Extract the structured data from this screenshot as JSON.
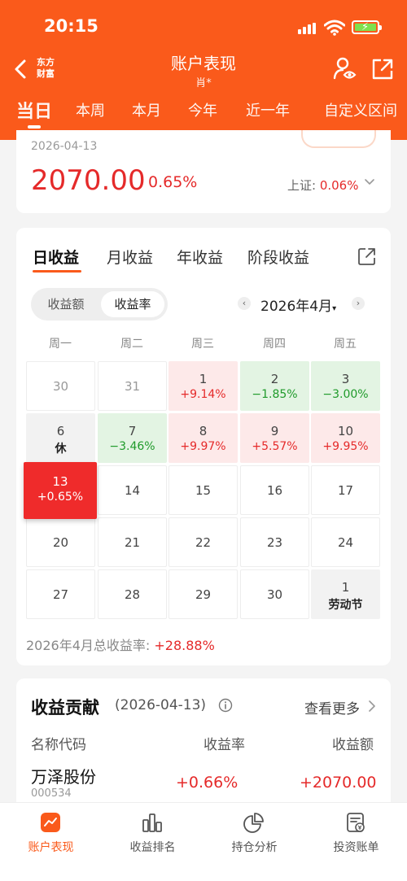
{
  "status_bar": {
    "time": "20:15"
  },
  "header": {
    "logo_line1": "东方",
    "logo_line2": "财富",
    "title": "账户表现",
    "subtitle": "肖*",
    "tabs": [
      "当日",
      "本周",
      "本月",
      "今年",
      "近一年",
      "自定义区间"
    ]
  },
  "summary": {
    "date": "2026-04-13",
    "amount": "2070.00",
    "pct": "0.65%",
    "index_label": "上证: ",
    "index_value": "0.06%"
  },
  "calendar_tabs": [
    "日收益",
    "月收益",
    "年收益",
    "阶段收益"
  ],
  "segment": [
    "收益额",
    "收益率"
  ],
  "month": {
    "prev": "‹",
    "label": "2026年4月",
    "caret": "▾",
    "next": "›"
  },
  "weekdays": [
    "周一",
    "周二",
    "周三",
    "周四",
    "周五"
  ],
  "calendar": [
    [
      {
        "d": "30",
        "p": "",
        "t": "other"
      },
      {
        "d": "31",
        "p": "",
        "t": "other"
      },
      {
        "d": "1",
        "p": "+9.14%",
        "t": "up"
      },
      {
        "d": "2",
        "p": "−1.85%",
        "t": "down"
      },
      {
        "d": "3",
        "p": "−3.00%",
        "t": "down"
      }
    ],
    [
      {
        "d": "6",
        "p": "休",
        "t": "rest"
      },
      {
        "d": "7",
        "p": "−3.46%",
        "t": "down"
      },
      {
        "d": "8",
        "p": "+9.97%",
        "t": "up"
      },
      {
        "d": "9",
        "p": "+5.57%",
        "t": "up"
      },
      {
        "d": "10",
        "p": "+9.95%",
        "t": "up"
      }
    ],
    [
      {
        "d": "13",
        "p": "+0.65%",
        "t": "today"
      },
      {
        "d": "14",
        "p": "",
        "t": "plain"
      },
      {
        "d": "15",
        "p": "",
        "t": "plain"
      },
      {
        "d": "16",
        "p": "",
        "t": "plain"
      },
      {
        "d": "17",
        "p": "",
        "t": "plain"
      }
    ],
    [
      {
        "d": "20",
        "p": "",
        "t": "plain"
      },
      {
        "d": "21",
        "p": "",
        "t": "plain"
      },
      {
        "d": "22",
        "p": "",
        "t": "plain"
      },
      {
        "d": "23",
        "p": "",
        "t": "plain"
      },
      {
        "d": "24",
        "p": "",
        "t": "plain"
      }
    ],
    [
      {
        "d": "27",
        "p": "",
        "t": "plain"
      },
      {
        "d": "28",
        "p": "",
        "t": "plain"
      },
      {
        "d": "29",
        "p": "",
        "t": "plain"
      },
      {
        "d": "30",
        "p": "",
        "t": "plain"
      },
      {
        "d": "1",
        "p": "劳动节",
        "t": "rest"
      }
    ]
  ],
  "total": {
    "label": "2026年4月总收益率: ",
    "value": "+28.88%"
  },
  "contribution": {
    "title": "收益贡献",
    "date": "(2026-04-13)",
    "more": "查看更多",
    "col_name": "名称代码",
    "col_rate": "收益率",
    "col_amount": "收益额",
    "row": {
      "name": "万泽股份",
      "code": "000534",
      "rate": "+0.66%",
      "amount": "+2070.00"
    }
  },
  "bottom_nav": [
    "账户表现",
    "收益排名",
    "持仓分析",
    "投资账单"
  ],
  "colors": {
    "brand": "#fa5a1b",
    "up": "#e52a2a",
    "down": "#1f9a2a"
  }
}
